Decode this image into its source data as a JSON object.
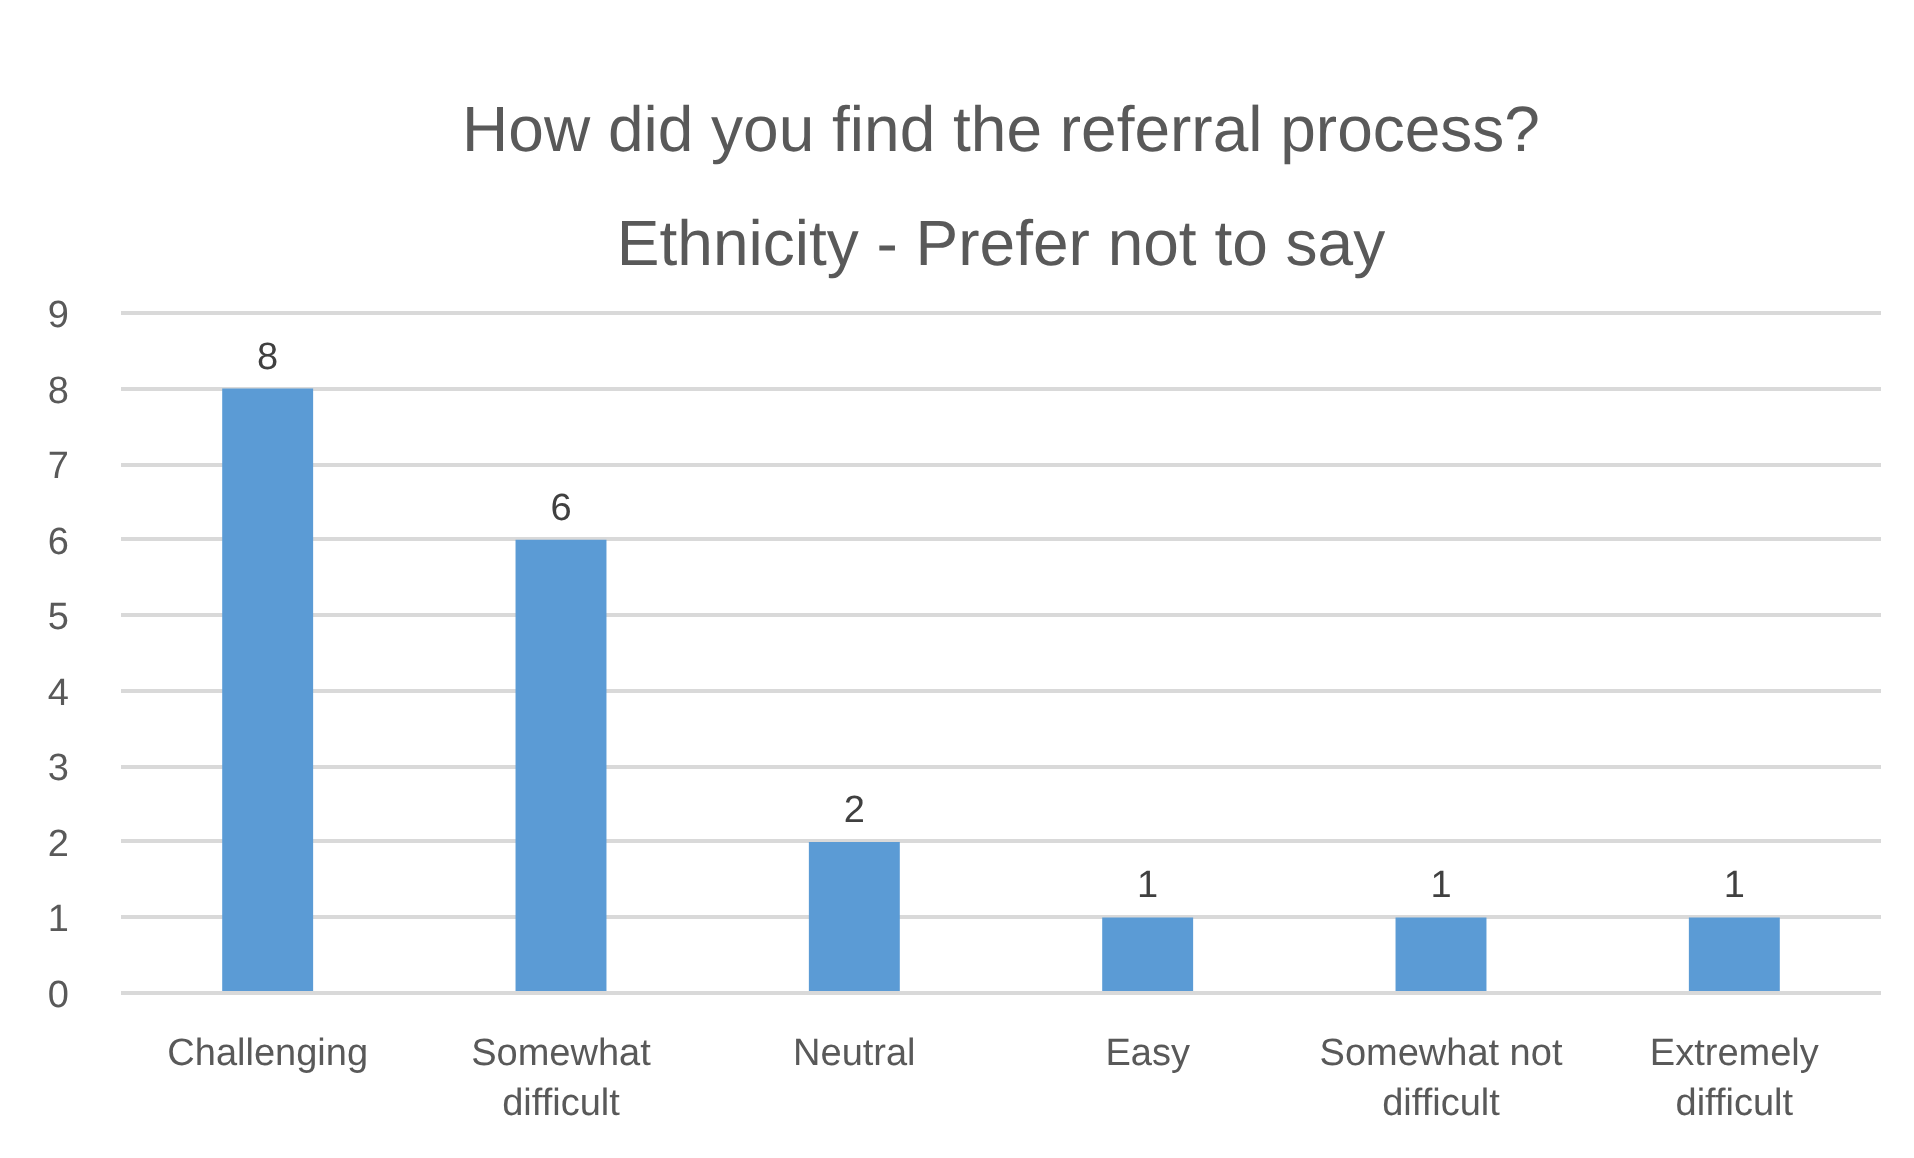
{
  "chart_data": {
    "type": "bar",
    "title": "How did you find the referral process?",
    "subtitle": "Ethnicity - Prefer not to say",
    "categories": [
      "Challenging",
      "Somewhat difficult",
      "Neutral",
      "Easy",
      "Somewhat not difficult",
      "Extremely difficult"
    ],
    "values": [
      8,
      6,
      2,
      1,
      1,
      1
    ],
    "color": "#5b9bd5",
    "ylim": [
      0,
      9
    ],
    "yticks": [
      0,
      1,
      2,
      3,
      4,
      5,
      6,
      7,
      8,
      9
    ],
    "grid": "y",
    "data_labels": true
  }
}
